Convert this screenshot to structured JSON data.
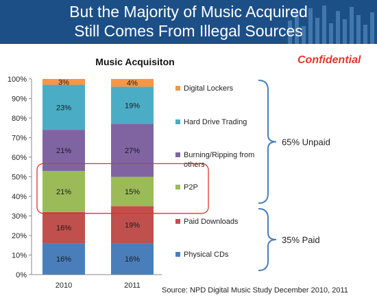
{
  "header": {
    "line1": "But the Majority of Music Acquired",
    "line2": "Still Comes From Illegal Sources"
  },
  "confidential": "Confidential",
  "source": "Source:  NPD Digital Music Study December  2010, 2011",
  "chart_data": {
    "type": "bar",
    "stacked": true,
    "title": "Music Acquisiton",
    "categories": [
      "2010",
      "2011"
    ],
    "ylim": [
      0,
      100
    ],
    "yticks": [
      "0%",
      "10%",
      "20%",
      "30%",
      "40%",
      "50%",
      "60%",
      "70%",
      "80%",
      "90%",
      "100%"
    ],
    "grid": false,
    "legend_position": "right",
    "series": [
      {
        "name": "Physical CDs",
        "values": [
          16,
          16
        ],
        "labels": [
          "16%",
          "16%"
        ],
        "color": "#4a7ebb"
      },
      {
        "name": "Paid Downloads",
        "values": [
          16,
          19
        ],
        "labels": [
          "16%",
          "19%"
        ],
        "color": "#c0504d"
      },
      {
        "name": "P2P",
        "values": [
          21,
          15
        ],
        "labels": [
          "21%",
          "15%"
        ],
        "color": "#9bbb59"
      },
      {
        "name": "Burning/Ripping from others",
        "legend_lines": [
          "Burning/Ripping from",
          "others"
        ],
        "values": [
          21,
          27
        ],
        "labels": [
          "21%",
          "27%"
        ],
        "color": "#8064a2"
      },
      {
        "name": "Hard Drive Trading",
        "values": [
          23,
          19
        ],
        "labels": [
          "23%",
          "19%"
        ],
        "color": "#4bacc6"
      },
      {
        "name": "Digital Lockers",
        "values": [
          3,
          4
        ],
        "labels": [
          "3%",
          "4%"
        ],
        "color": "#f79646"
      }
    ],
    "highlight_series": "P2P",
    "highlight_color": "#e0312a",
    "annotations": [
      {
        "text": "65% Unpaid",
        "series": [
          "Burning/Ripping from others",
          "Hard Drive Trading",
          "Digital Lockers",
          "P2P"
        ]
      },
      {
        "text": "35% Paid",
        "series": [
          "Physical CDs",
          "Paid Downloads"
        ]
      }
    ],
    "brace_color": "#4a7ebb"
  }
}
